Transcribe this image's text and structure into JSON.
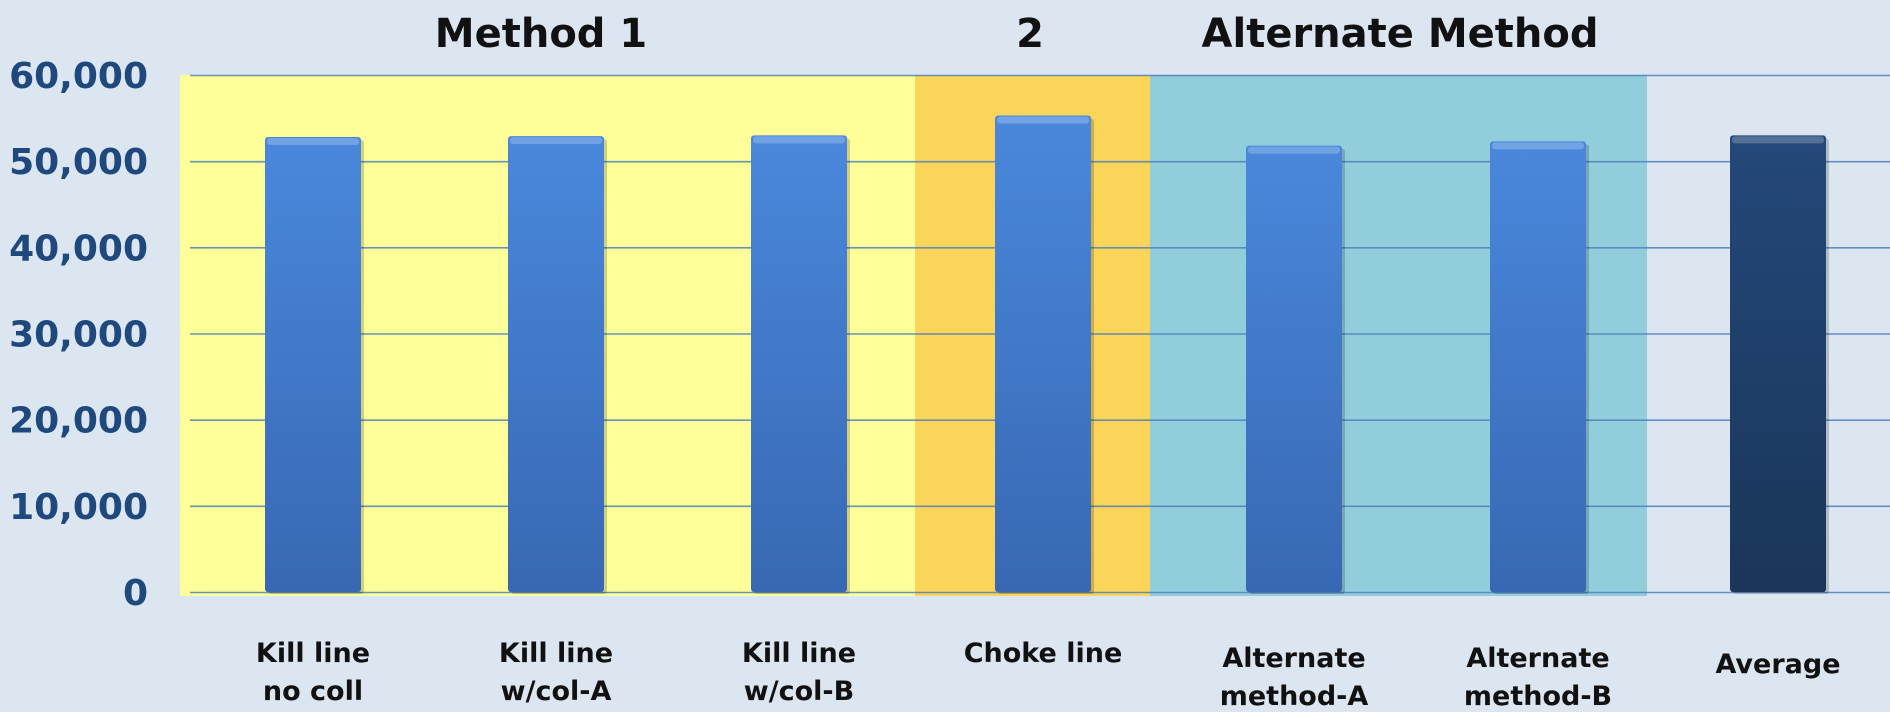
{
  "chart_data": {
    "type": "bar",
    "categories": [
      [
        "Kill line",
        "no coll"
      ],
      [
        "Kill line",
        "w/col-A"
      ],
      [
        "Kill line",
        "w/col-B"
      ],
      [
        "Choke line"
      ],
      [
        "Alternate",
        "method-A"
      ],
      [
        "Alternate",
        "method-B"
      ],
      [
        "Average"
      ]
    ],
    "values": [
      52800,
      52900,
      53000,
      55300,
      51800,
      52300,
      53000
    ],
    "ylim": [
      0,
      60000
    ],
    "yticks": [
      "0",
      "10,000",
      "20,000",
      "30,000",
      "40,000",
      "50,000",
      "60,000"
    ],
    "grid": true,
    "groups": [
      {
        "label": "Method 1",
        "categories": [
          0,
          1,
          2
        ],
        "color": "#ffff99"
      },
      {
        "label": "2",
        "categories": [
          3
        ],
        "color": "#fbd55a"
      },
      {
        "label": "Alternate Method",
        "categories": [
          4,
          5
        ],
        "color": "#92cddc"
      }
    ],
    "colors": {
      "bar": "#3f76c7",
      "average_bar": "#1e3d66",
      "grid": "#4f81bd",
      "tick_text": "#1f497d",
      "background": "#dce6f1"
    }
  }
}
